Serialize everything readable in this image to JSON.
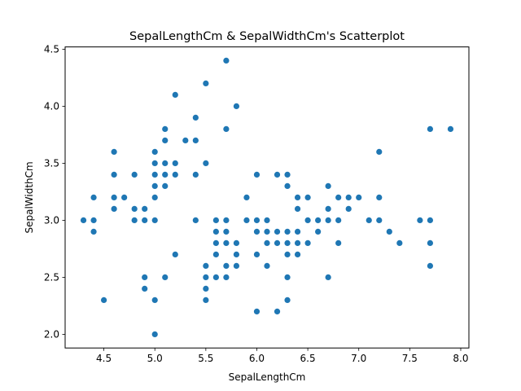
{
  "chart_data": {
    "type": "scatter",
    "title": "SepalLengthCm & SepalWidthCm's Scatterplot",
    "xlabel": "SepalLengthCm",
    "ylabel": "SepalWidthCm",
    "xlim": [
      4.12,
      8.08
    ],
    "ylim": [
      1.88,
      4.52
    ],
    "xticks": [
      4.5,
      5.0,
      5.5,
      6.0,
      6.5,
      7.0,
      7.5,
      8.0
    ],
    "xtick_labels": [
      "4.5",
      "5.0",
      "5.5",
      "6.0",
      "6.5",
      "7.0",
      "7.5",
      "8.0"
    ],
    "yticks": [
      2.0,
      2.5,
      3.0,
      3.5,
      4.0,
      4.5
    ],
    "ytick_labels": [
      "2.0",
      "2.5",
      "3.0",
      "3.5",
      "4.0",
      "4.5"
    ],
    "grid": false,
    "color": "#1f77b4",
    "points": [
      [
        4.3,
        3.0
      ],
      [
        4.4,
        2.9
      ],
      [
        4.4,
        3.0
      ],
      [
        4.4,
        3.2
      ],
      [
        4.5,
        2.3
      ],
      [
        4.6,
        3.1
      ],
      [
        4.6,
        3.2
      ],
      [
        4.6,
        3.4
      ],
      [
        4.6,
        3.6
      ],
      [
        4.7,
        3.2
      ],
      [
        4.8,
        3.0
      ],
      [
        4.8,
        3.1
      ],
      [
        4.8,
        3.4
      ],
      [
        4.9,
        2.4
      ],
      [
        4.9,
        2.5
      ],
      [
        4.9,
        3.0
      ],
      [
        4.9,
        3.1
      ],
      [
        5.0,
        2.0
      ],
      [
        5.0,
        2.3
      ],
      [
        5.0,
        3.0
      ],
      [
        5.0,
        3.2
      ],
      [
        5.0,
        3.3
      ],
      [
        5.0,
        3.4
      ],
      [
        5.0,
        3.5
      ],
      [
        5.0,
        3.6
      ],
      [
        5.1,
        2.5
      ],
      [
        5.1,
        3.3
      ],
      [
        5.1,
        3.4
      ],
      [
        5.1,
        3.5
      ],
      [
        5.1,
        3.7
      ],
      [
        5.1,
        3.8
      ],
      [
        5.2,
        2.7
      ],
      [
        5.2,
        3.4
      ],
      [
        5.2,
        3.5
      ],
      [
        5.2,
        4.1
      ],
      [
        5.3,
        3.7
      ],
      [
        5.4,
        3.0
      ],
      [
        5.4,
        3.4
      ],
      [
        5.4,
        3.7
      ],
      [
        5.4,
        3.9
      ],
      [
        5.5,
        2.3
      ],
      [
        5.5,
        2.4
      ],
      [
        5.5,
        2.5
      ],
      [
        5.5,
        2.6
      ],
      [
        5.5,
        3.5
      ],
      [
        5.5,
        4.2
      ],
      [
        5.6,
        2.5
      ],
      [
        5.6,
        2.7
      ],
      [
        5.6,
        2.8
      ],
      [
        5.6,
        2.9
      ],
      [
        5.6,
        3.0
      ],
      [
        5.7,
        2.5
      ],
      [
        5.7,
        2.6
      ],
      [
        5.7,
        2.8
      ],
      [
        5.7,
        2.9
      ],
      [
        5.7,
        3.0
      ],
      [
        5.7,
        3.8
      ],
      [
        5.7,
        4.4
      ],
      [
        5.8,
        2.6
      ],
      [
        5.8,
        2.7
      ],
      [
        5.8,
        2.8
      ],
      [
        5.8,
        4.0
      ],
      [
        5.9,
        3.0
      ],
      [
        5.9,
        3.2
      ],
      [
        6.0,
        2.2
      ],
      [
        6.0,
        2.7
      ],
      [
        6.0,
        2.9
      ],
      [
        6.0,
        3.0
      ],
      [
        6.0,
        3.4
      ],
      [
        6.1,
        2.6
      ],
      [
        6.1,
        2.8
      ],
      [
        6.1,
        2.9
      ],
      [
        6.1,
        3.0
      ],
      [
        6.2,
        2.2
      ],
      [
        6.2,
        2.8
      ],
      [
        6.2,
        2.9
      ],
      [
        6.2,
        3.4
      ],
      [
        6.3,
        2.3
      ],
      [
        6.3,
        2.5
      ],
      [
        6.3,
        2.7
      ],
      [
        6.3,
        2.8
      ],
      [
        6.3,
        2.9
      ],
      [
        6.3,
        3.3
      ],
      [
        6.3,
        3.4
      ],
      [
        6.4,
        2.7
      ],
      [
        6.4,
        2.8
      ],
      [
        6.4,
        2.9
      ],
      [
        6.4,
        3.1
      ],
      [
        6.4,
        3.2
      ],
      [
        6.5,
        2.8
      ],
      [
        6.5,
        3.0
      ],
      [
        6.5,
        3.2
      ],
      [
        6.6,
        2.9
      ],
      [
        6.6,
        3.0
      ],
      [
        6.7,
        2.5
      ],
      [
        6.7,
        3.0
      ],
      [
        6.7,
        3.1
      ],
      [
        6.7,
        3.3
      ],
      [
        6.8,
        2.8
      ],
      [
        6.8,
        3.0
      ],
      [
        6.8,
        3.2
      ],
      [
        6.9,
        3.1
      ],
      [
        6.9,
        3.2
      ],
      [
        7.0,
        3.2
      ],
      [
        7.1,
        3.0
      ],
      [
        7.2,
        3.0
      ],
      [
        7.2,
        3.2
      ],
      [
        7.2,
        3.6
      ],
      [
        7.3,
        2.9
      ],
      [
        7.4,
        2.8
      ],
      [
        7.6,
        3.0
      ],
      [
        7.7,
        2.6
      ],
      [
        7.7,
        2.8
      ],
      [
        7.7,
        3.0
      ],
      [
        7.7,
        3.8
      ],
      [
        7.9,
        3.8
      ]
    ]
  }
}
